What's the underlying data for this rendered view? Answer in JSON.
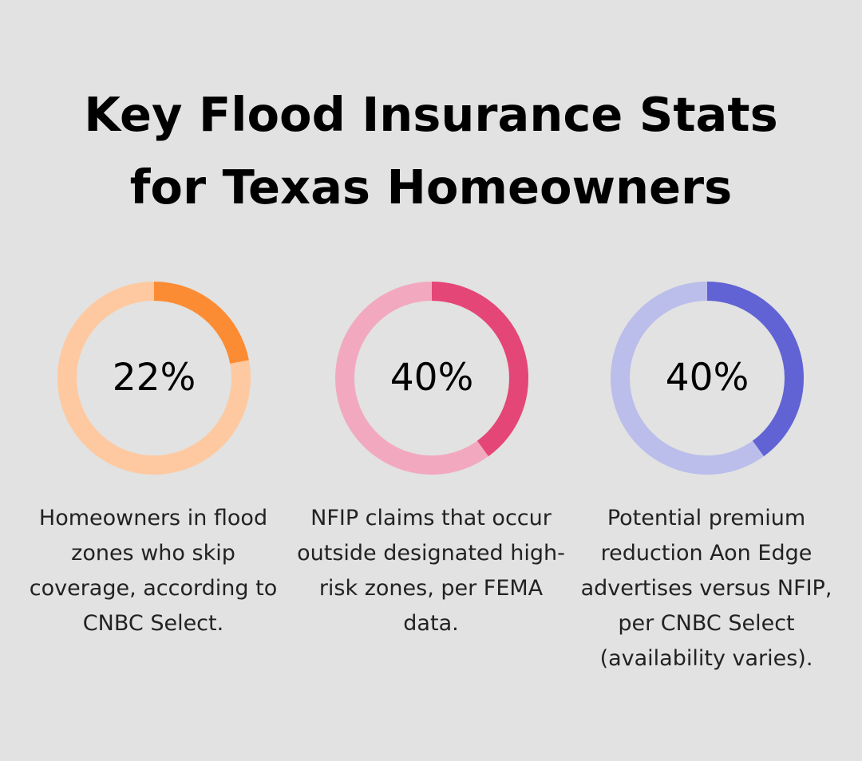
{
  "title": {
    "line1": "Key Flood Insurance Stats",
    "line2": "for Texas Homeowners"
  },
  "chart_data": {
    "type": "donut",
    "items": [
      {
        "label": "22%",
        "value": 22,
        "description": "Homeowners in flood zones who skip coverage, according to CNBC Select.",
        "colors": {
          "accent": "#fc8c34",
          "track": "#fec9a0"
        }
      },
      {
        "label": "40%",
        "value": 40,
        "description": "NFIP claims that occur outside designated high-risk zones, per FEMA data.",
        "colors": {
          "accent": "#e44677",
          "track": "#f2a9c0"
        }
      },
      {
        "label": "40%",
        "value": 40,
        "description": "Potential premium reduction Aon Edge advertises versus NFIP, per CNBC Select (availability varies).",
        "colors": {
          "accent": "#6163d4",
          "track": "#bbbdeb"
        }
      }
    ]
  }
}
